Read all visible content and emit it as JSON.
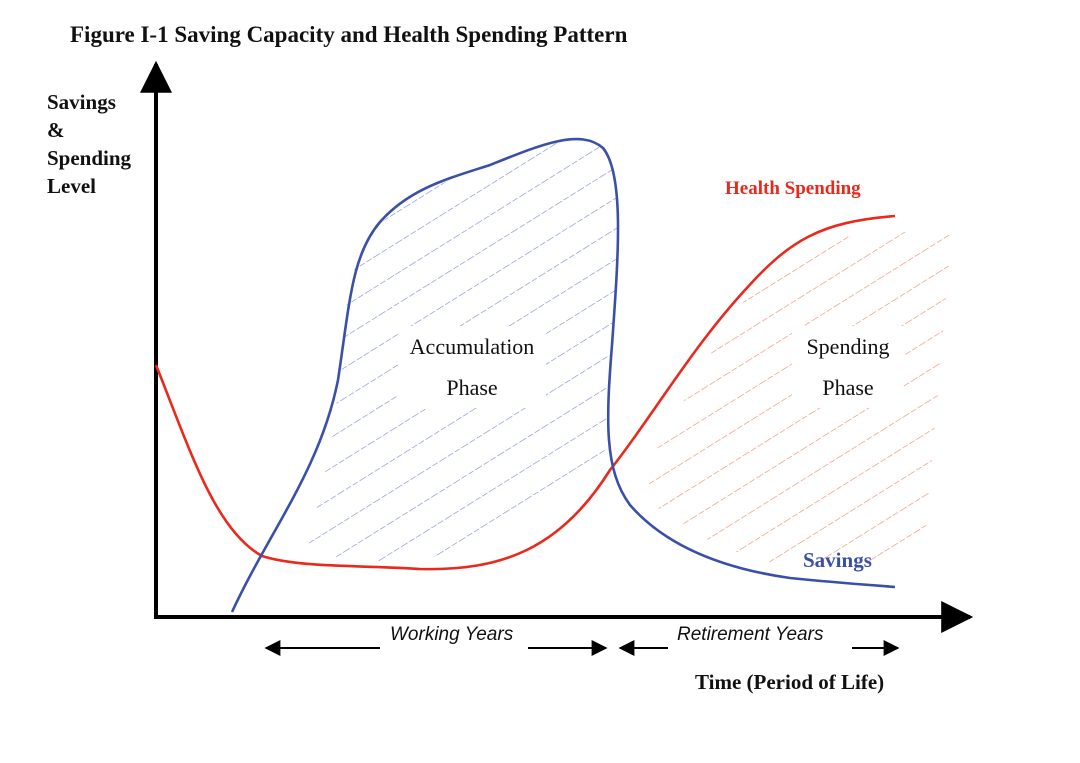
{
  "title": "Figure I-1 Saving Capacity and Health Spending Pattern",
  "y_axis_label_lines": [
    "Savings",
    "&",
    "Spending",
    "Level"
  ],
  "x_axis_label": "Time (Period of Life)",
  "phases": {
    "accumulation_lines": [
      "Accumulation",
      "Phase"
    ],
    "spending_lines": [
      "Spending",
      "Phase"
    ]
  },
  "series": {
    "health": {
      "name": "Health Spending",
      "color": "#e8291c"
    },
    "savings": {
      "name": "Savings",
      "color": "#3a4fa8"
    }
  },
  "periods": {
    "working": "Working Years",
    "retirement": "Retirement Years"
  },
  "hatch_colors": {
    "accumulation": "#7d8dd0",
    "spending": "#f08a6c"
  }
}
